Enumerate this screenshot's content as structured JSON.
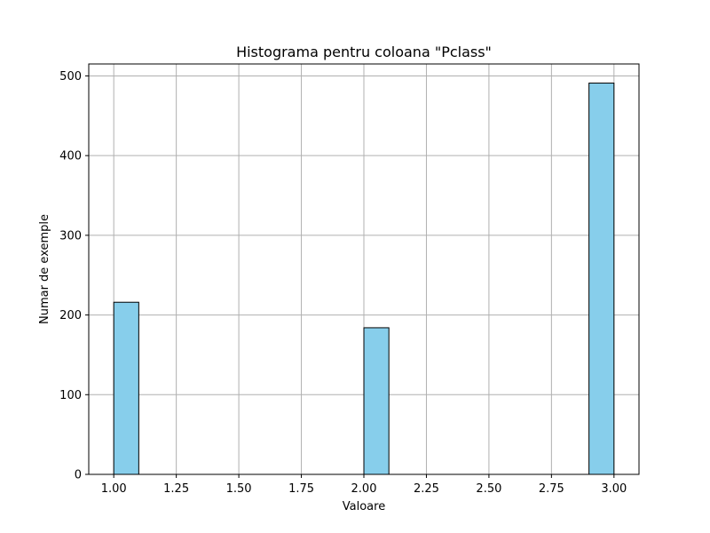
{
  "chart_data": {
    "type": "bar",
    "title": "Histograma pentru coloana \"Pclass\"",
    "xlabel": "Valoare",
    "ylabel": "Numar de exemple",
    "xlim": [
      0.9,
      3.1
    ],
    "ylim": [
      0,
      515
    ],
    "grid": true,
    "bar_color": "#87ceeb",
    "edge_color": "#000000",
    "grid_color": "#b0b0b0",
    "x_ticks": [
      "1.00",
      "1.25",
      "1.50",
      "1.75",
      "2.00",
      "2.25",
      "2.50",
      "2.75",
      "3.00"
    ],
    "x_tick_values": [
      1.0,
      1.25,
      1.5,
      1.75,
      2.0,
      2.25,
      2.5,
      2.75,
      3.0
    ],
    "y_ticks": [
      "0",
      "100",
      "200",
      "300",
      "400",
      "500"
    ],
    "y_tick_values": [
      0,
      100,
      200,
      300,
      400,
      500
    ],
    "bins": [
      {
        "x0": 1.0,
        "x1": 1.1,
        "count": 216
      },
      {
        "x0": 2.0,
        "x1": 2.1,
        "count": 184
      },
      {
        "x0": 2.9,
        "x1": 3.0,
        "count": 491
      }
    ]
  }
}
